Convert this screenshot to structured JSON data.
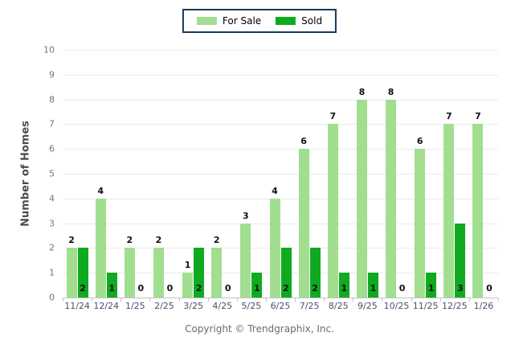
{
  "legend": {
    "items": [
      {
        "label": "For Sale",
        "color": "#a1de90"
      },
      {
        "label": "Sold",
        "color": "#0faa1f"
      }
    ],
    "border_color": "#17375e"
  },
  "chart_data": {
    "type": "bar",
    "categories": [
      "11/24",
      "12/24",
      "1/25",
      "2/25",
      "3/25",
      "4/25",
      "5/25",
      "6/25",
      "7/25",
      "8/25",
      "9/25",
      "10/25",
      "11/25",
      "12/25",
      "1/26"
    ],
    "series": [
      {
        "name": "For Sale",
        "color": "#a1de90",
        "values": [
          2,
          4,
          2,
          2,
          1,
          2,
          3,
          4,
          6,
          7,
          8,
          8,
          6,
          7,
          7
        ]
      },
      {
        "name": "Sold",
        "color": "#0faa1f",
        "values": [
          2,
          1,
          0,
          0,
          2,
          0,
          1,
          2,
          2,
          1,
          1,
          0,
          1,
          3,
          0
        ]
      }
    ],
    "title": "",
    "xlabel": "",
    "ylabel": "Number of Homes",
    "ylim": [
      0,
      10
    ],
    "yticks": [
      0,
      1,
      2,
      3,
      4,
      5,
      6,
      7,
      8,
      9,
      10
    ],
    "grid": true,
    "legend_position": "top",
    "value_labels": true
  },
  "footer": {
    "copyright": "Copyright © Trendgraphix, Inc."
  }
}
